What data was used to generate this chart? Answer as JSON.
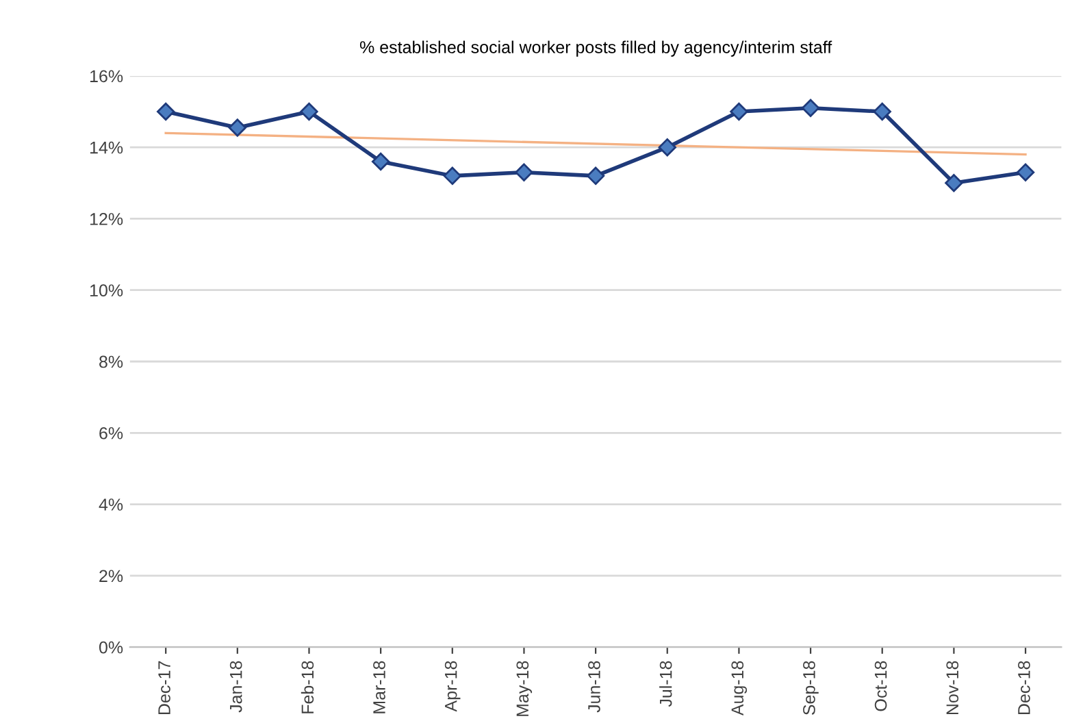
{
  "chart_data": {
    "type": "line",
    "title": "% established social worker posts filled by agency/interim staff",
    "categories": [
      "Dec-17",
      "Jan-18",
      "Feb-18",
      "Mar-18",
      "Apr-18",
      "May-18",
      "Jun-18",
      "Jul-18",
      "Aug-18",
      "Sep-18",
      "Oct-18",
      "Nov-18",
      "Dec-18"
    ],
    "series": [
      {
        "color": "#1f3a7a",
        "marker": "diamond",
        "values": [
          15.0,
          14.55,
          15.0,
          13.6,
          13.2,
          13.3,
          13.2,
          14.0,
          15.0,
          15.1,
          15.0,
          13.0,
          13.3
        ]
      },
      {
        "type": "line",
        "color": "#f4b183",
        "marker": "none",
        "x": [
          "Dec-17",
          "Dec-18"
        ],
        "values": [
          14.4,
          13.8
        ]
      }
    ],
    "ylim": [
      0,
      16
    ],
    "yticks": [
      {
        "value": 0,
        "label": "0%"
      },
      {
        "value": 2,
        "label": "2%"
      },
      {
        "value": 4,
        "label": "4%"
      },
      {
        "value": 6,
        "label": "6%"
      },
      {
        "value": 8,
        "label": "8%"
      },
      {
        "value": 10,
        "label": "10%"
      },
      {
        "value": 12,
        "label": "12%"
      },
      {
        "value": 14,
        "label": "14%"
      },
      {
        "value": 16,
        "label": "16%"
      }
    ],
    "grid": "y",
    "legend": false,
    "line_style": "solid"
  }
}
